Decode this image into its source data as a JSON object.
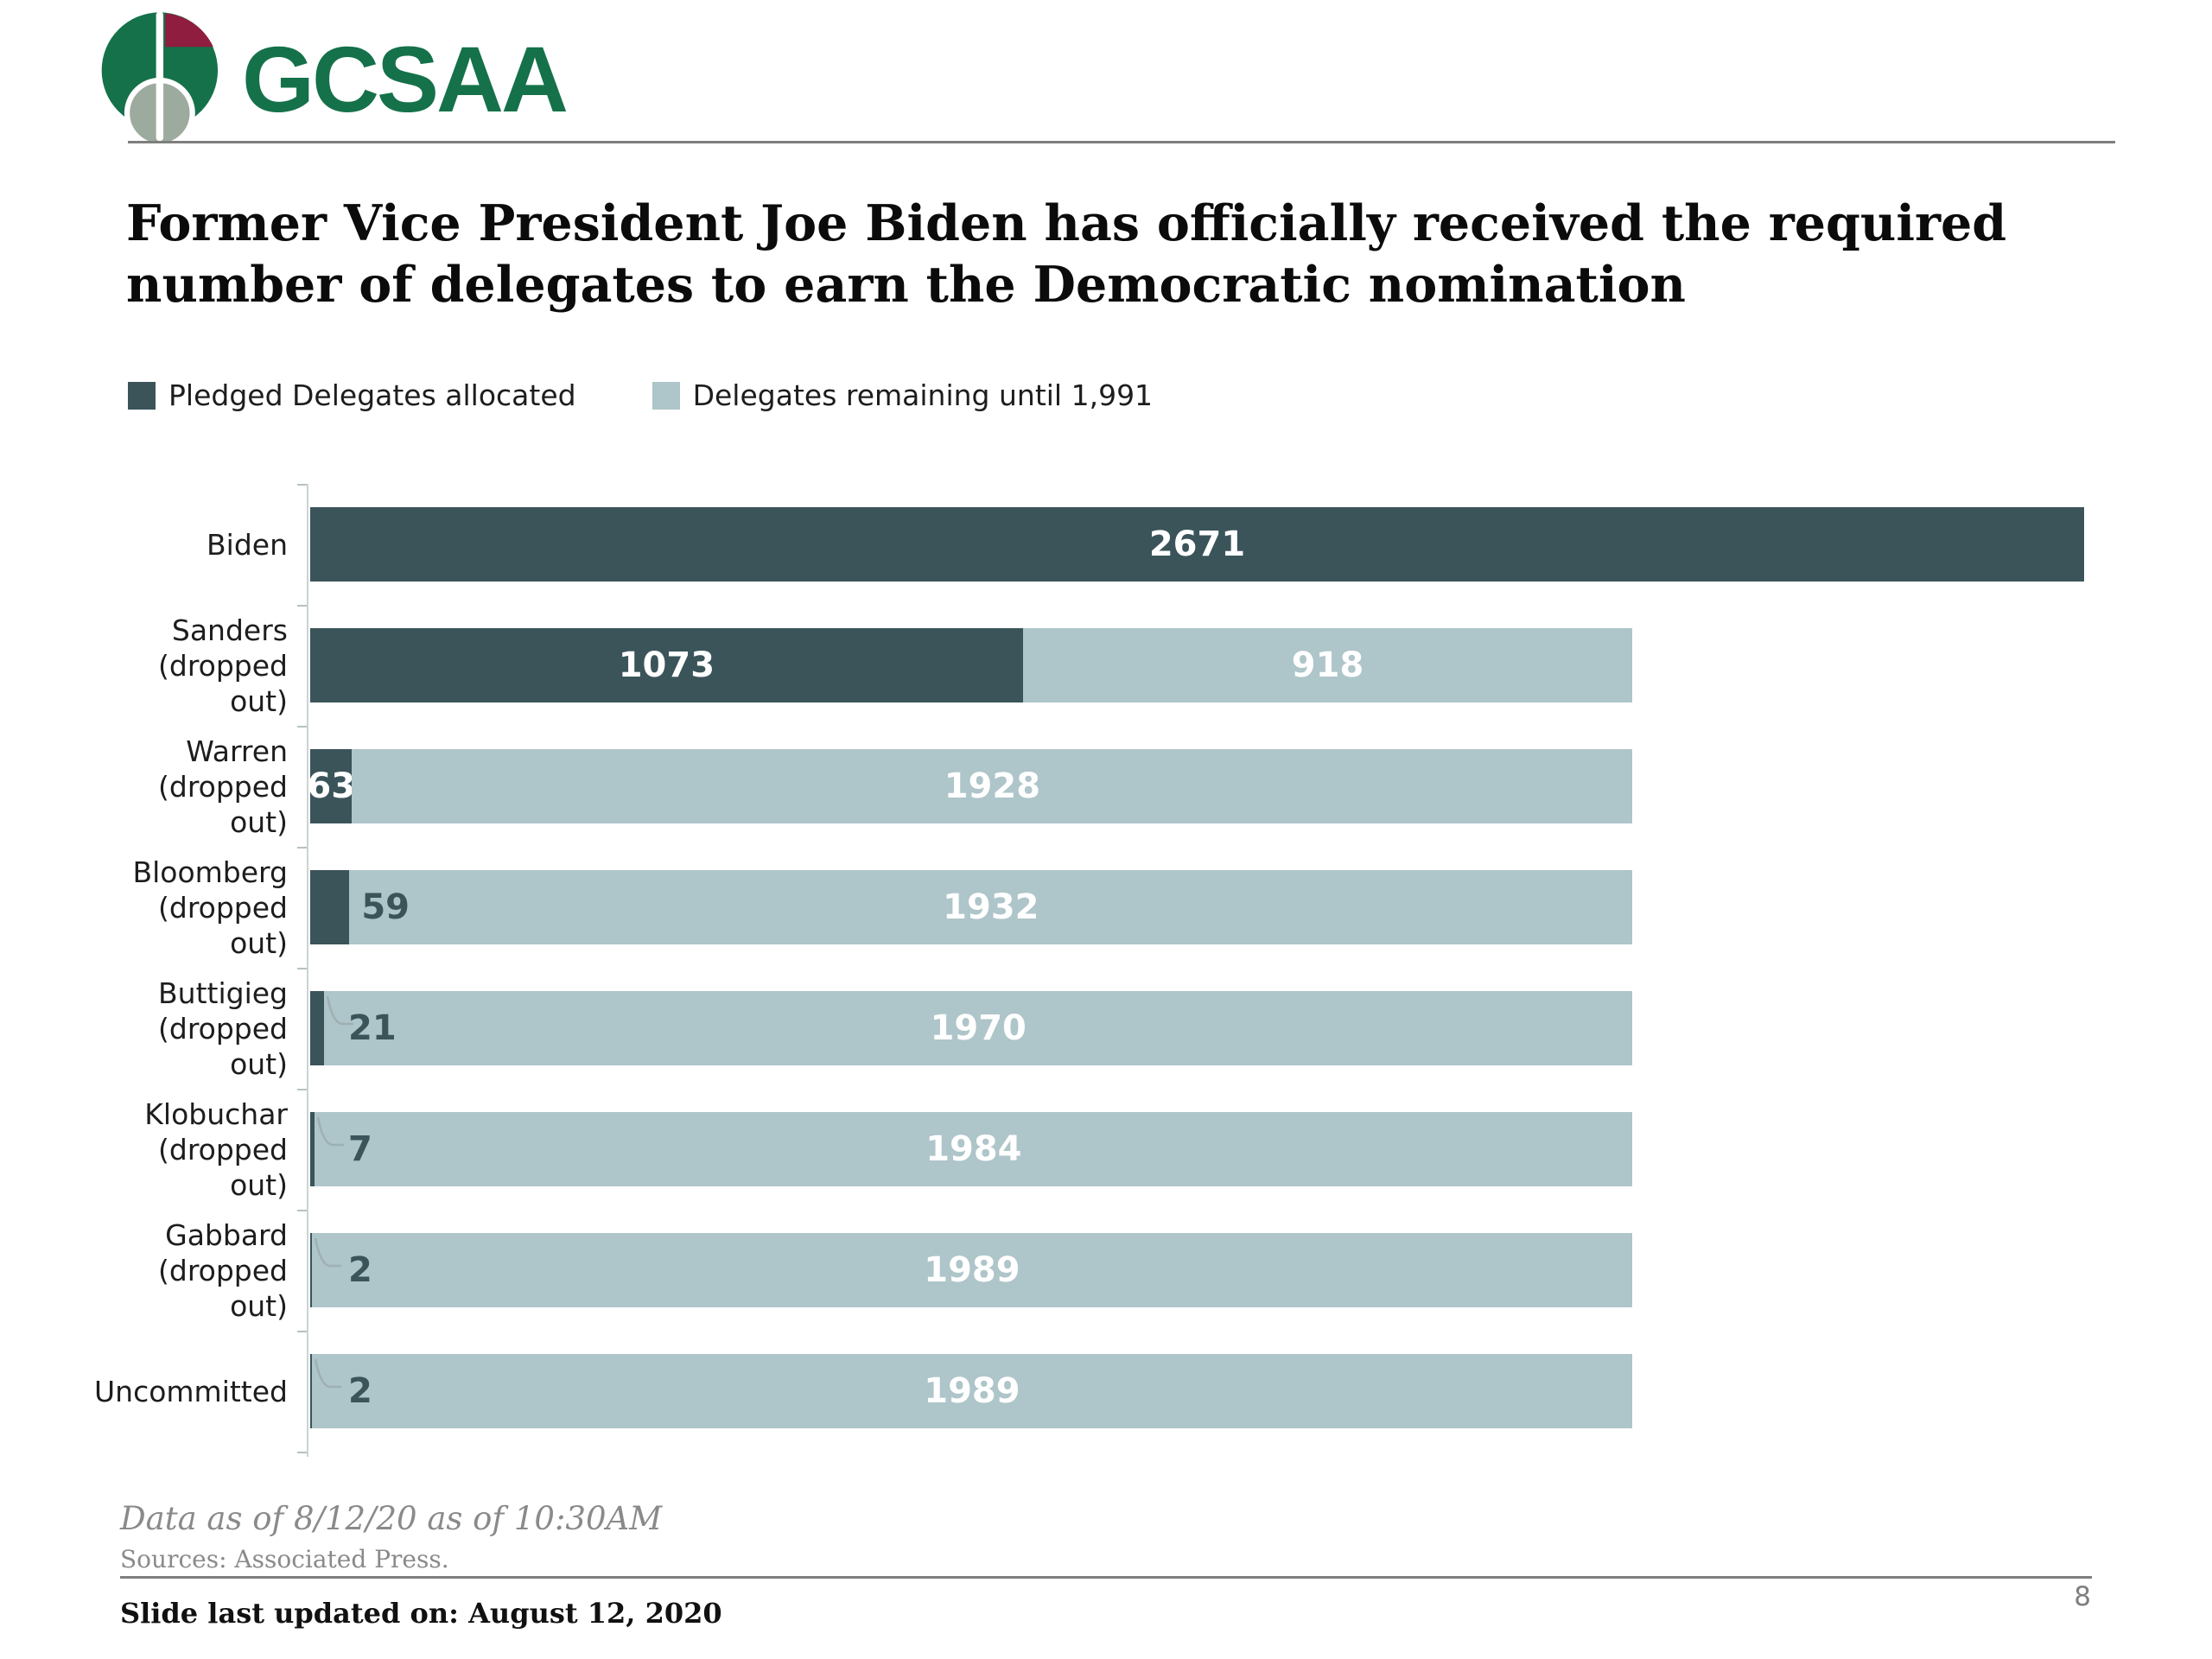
{
  "logo": {
    "text": "GCSAA",
    "green": "#15714a",
    "flag_maroon": "#8f1d3f",
    "ball_gray": "#9dab9e"
  },
  "title": {
    "lines": [
      "Former Vice President Joe Biden has officially received the required",
      "number of delegates to earn the Democratic nomination"
    ]
  },
  "legend": {
    "items": [
      {
        "label": "Pledged Delegates allocated",
        "color": "#3a545a"
      },
      {
        "label": "Delegates remaining until 1,991",
        "color": "#aec5c9"
      }
    ]
  },
  "chart_data": {
    "type": "bar",
    "orientation": "horizontal",
    "stacked": true,
    "x_max": 2671,
    "required_delegates": 1991,
    "series_names": [
      "Pledged Delegates allocated",
      "Delegates remaining until 1,991"
    ],
    "colors": {
      "allocated": "#3a545a",
      "remaining": "#aec5c9",
      "outside_label": "#3a545a",
      "leader_line": "#9fb0b2"
    },
    "categories": [
      "Biden",
      "Sanders (dropped out)",
      "Warren (dropped out)",
      "Bloomberg (dropped out)",
      "Buttigieg (dropped out)",
      "Klobuchar (dropped out)",
      "Gabbard (dropped out)",
      "Uncommitted"
    ],
    "series": [
      {
        "name": "Pledged Delegates allocated",
        "values": [
          2671,
          1073,
          63,
          59,
          21,
          7,
          2,
          2
        ]
      },
      {
        "name": "Delegates remaining until 1,991",
        "values": [
          0,
          918,
          1928,
          1932,
          1970,
          1984,
          1989,
          1989
        ]
      }
    ],
    "rows": [
      {
        "label": "Biden",
        "sublabel": "",
        "allocated": 2671,
        "remaining": 0,
        "allocated_label": "2671",
        "remaining_label": "",
        "allocated_label_placement": "inside",
        "leader_line": false
      },
      {
        "label": "Sanders",
        "sublabel": "(dropped out)",
        "allocated": 1073,
        "remaining": 918,
        "allocated_label": "1073",
        "remaining_label": "918",
        "allocated_label_placement": "inside",
        "leader_line": false
      },
      {
        "label": "Warren",
        "sublabel": "(dropped out)",
        "allocated": 63,
        "remaining": 1928,
        "allocated_label": "63",
        "remaining_label": "1928",
        "allocated_label_placement": "inside",
        "leader_line": false
      },
      {
        "label": "Bloomberg",
        "sublabel": "(dropped out)",
        "allocated": 59,
        "remaining": 1932,
        "allocated_label": "59",
        "remaining_label": "1932",
        "allocated_label_placement": "outside",
        "leader_line": false
      },
      {
        "label": "Buttigieg",
        "sublabel": "(dropped out)",
        "allocated": 21,
        "remaining": 1970,
        "allocated_label": "21",
        "remaining_label": "1970",
        "allocated_label_placement": "outside",
        "leader_line": true
      },
      {
        "label": "Klobuchar",
        "sublabel": "(dropped out)",
        "allocated": 7,
        "remaining": 1984,
        "allocated_label": "7",
        "remaining_label": "1984",
        "allocated_label_placement": "outside",
        "leader_line": true
      },
      {
        "label": "Gabbard",
        "sublabel": "(dropped out)",
        "allocated": 2,
        "remaining": 1989,
        "allocated_label": "2",
        "remaining_label": "1989",
        "allocated_label_placement": "outside",
        "leader_line": true
      },
      {
        "label": "Uncommitted",
        "sublabel": "",
        "allocated": 2,
        "remaining": 1989,
        "allocated_label": "2",
        "remaining_label": "1989",
        "allocated_label_placement": "outside",
        "leader_line": true
      }
    ]
  },
  "footer": {
    "data_as_of": "Data as of 8/12/20 as of 10:30AM",
    "sources": "Sources: Associated Press.",
    "slide_updated": "Slide last updated on: August 12, 2020"
  },
  "page_number": "8"
}
